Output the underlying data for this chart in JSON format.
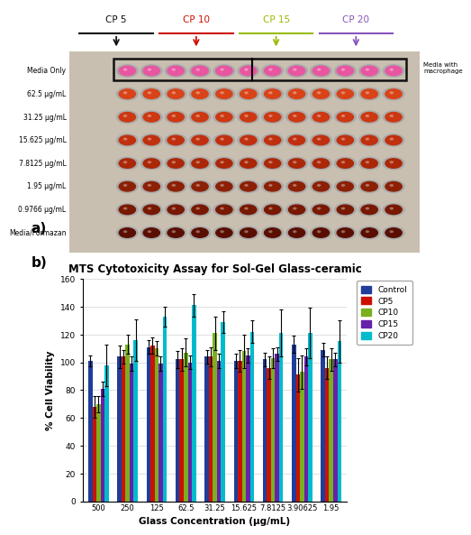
{
  "title_b": "MTS Cytotoxicity Assay for Sol-Gel Glass-ceramic",
  "xlabel": "Glass Concentration (μg/mL)",
  "ylabel": "% Cell Viability",
  "ylim": [
    0,
    160
  ],
  "yticks": [
    0,
    20,
    40,
    60,
    80,
    100,
    120,
    140,
    160
  ],
  "categories": [
    "500",
    "250",
    "125",
    "62.5",
    "31.25",
    "15.625",
    "7.8125",
    "3.90625",
    "1.95"
  ],
  "series": {
    "Control": {
      "color": "#1f3d99",
      "values": [
        101,
        104,
        111,
        102,
        104,
        101,
        102,
        113,
        109
      ],
      "errors": [
        4,
        8,
        5,
        6,
        5,
        5,
        5,
        6,
        5
      ]
    },
    "CP5": {
      "color": "#cc1100",
      "values": [
        68,
        104,
        112,
        102,
        104,
        101,
        96,
        91,
        96
      ],
      "errors": [
        8,
        5,
        6,
        8,
        7,
        8,
        8,
        12,
        8
      ]
    },
    "CP10": {
      "color": "#7ab020",
      "values": [
        70,
        113,
        110,
        107,
        121,
        108,
        103,
        93,
        102
      ],
      "errors": [
        6,
        7,
        5,
        10,
        12,
        12,
        7,
        12,
        8
      ]
    },
    "CP15": {
      "color": "#6622aa",
      "values": [
        81,
        99,
        99,
        100,
        101,
        105,
        106,
        104,
        102
      ],
      "errors": [
        5,
        5,
        5,
        5,
        5,
        5,
        5,
        6,
        5
      ]
    },
    "CP20": {
      "color": "#00bbcc",
      "values": [
        98,
        116,
        133,
        141,
        129,
        122,
        121,
        121,
        115
      ],
      "errors": [
        15,
        15,
        7,
        8,
        8,
        8,
        17,
        18,
        15
      ]
    }
  },
  "label_a": "a)",
  "label_b": "b)",
  "cp_labels": [
    "CP 5",
    "CP 10",
    "CP 15",
    "CP 20"
  ],
  "cp_arrow_colors": [
    "#111111",
    "#cc1100",
    "#99bb00",
    "#8855bb"
  ],
  "cp_line_colors": [
    "#111111",
    "#cc1100",
    "#99bb00",
    "#8855bb"
  ],
  "row_labels": [
    "Media Only",
    "62.5 μg/mL",
    "31.25 μg/mL",
    "15.625 μg/mL",
    "7.8125 μg/mL",
    "1.95 μg/mL",
    "0.9766 μg/mL",
    "Media/Formazan"
  ],
  "right_label": "Media with\nmacrophage",
  "plate_bg": "#c8bfb0",
  "plate_border": "#999999",
  "well_ring_color": "#aaaaaa",
  "row_well_colors": [
    "#e855a0",
    "#d84418",
    "#cc3812",
    "#c0300e",
    "#aa2808",
    "#8c2005",
    "#781800",
    "#5a0e00"
  ],
  "media_only_well_color": "#f060b0",
  "box_outline_color": "#111111"
}
